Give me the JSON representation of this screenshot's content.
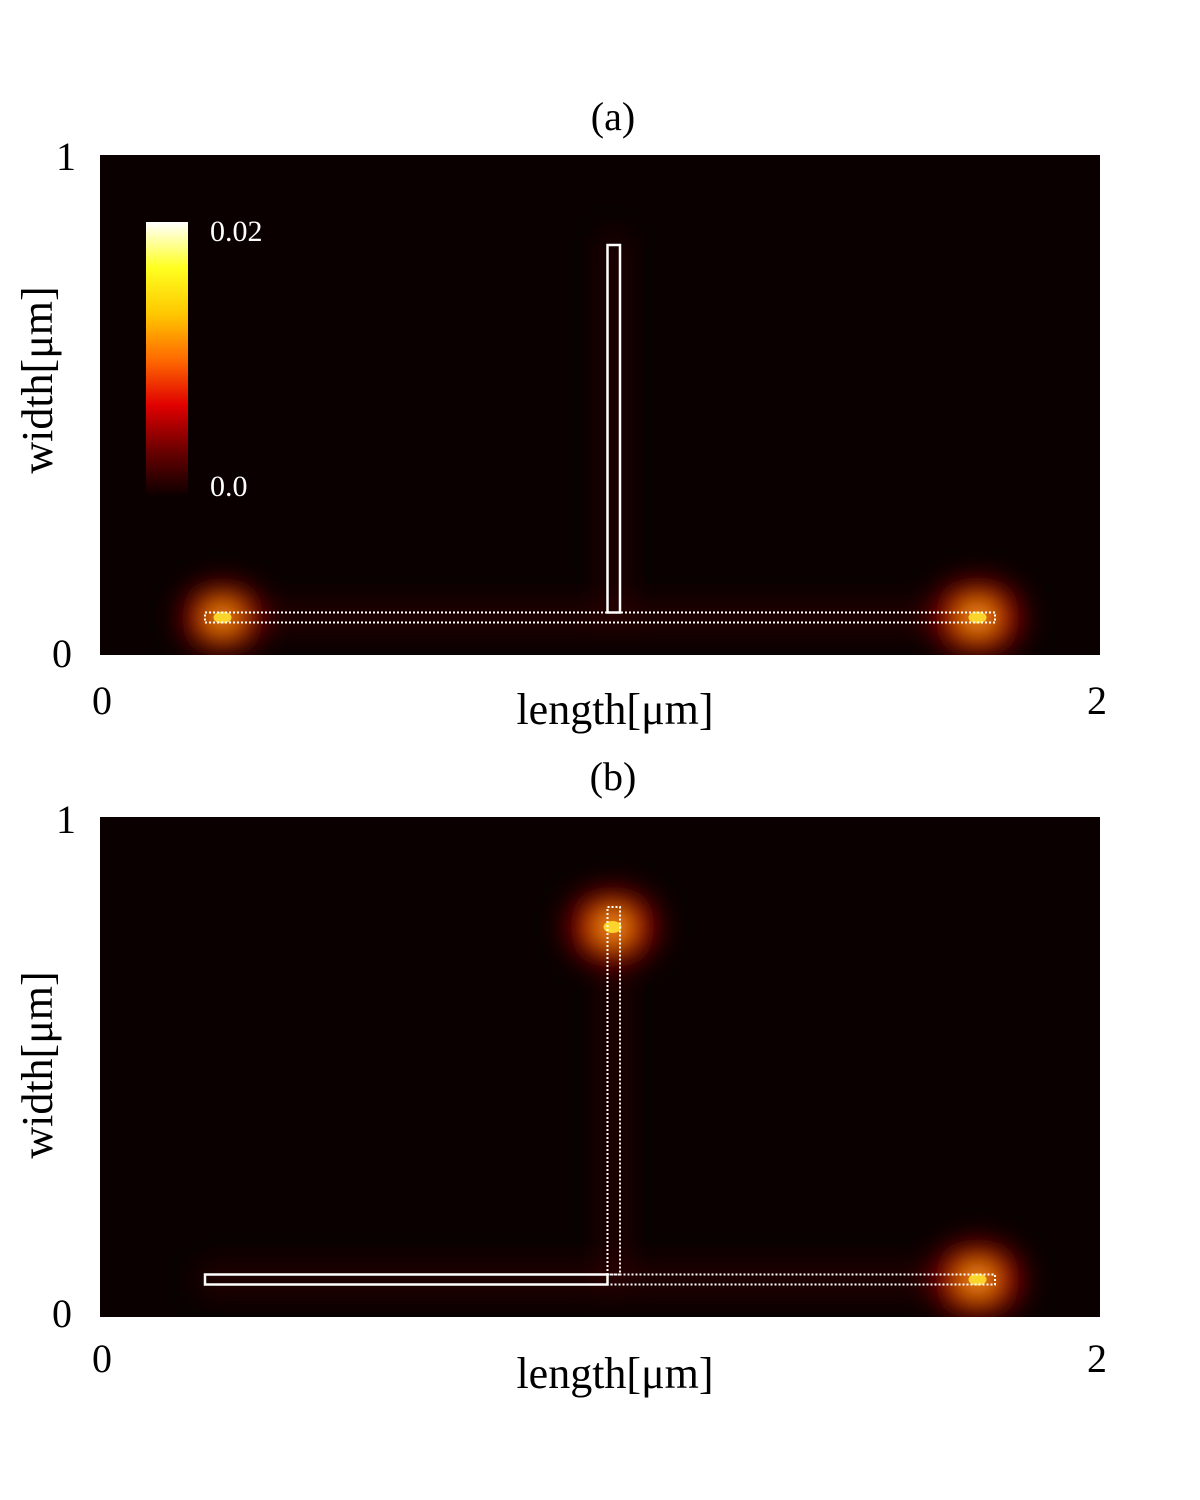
{
  "colors": {
    "background": "#0a0000",
    "wire_outline": "#ffffff"
  },
  "colormap": {
    "name": "hot",
    "stops": [
      "#0a0000",
      "#6a0000",
      "#e00000",
      "#ff6a00",
      "#ffc800",
      "#ffff20",
      "#ffffff"
    ]
  },
  "chart_data": [
    {
      "type": "heatmap",
      "title": "(a)",
      "xlabel": "length[μm]",
      "ylabel": "width[μm]",
      "xlim": [
        0,
        2
      ],
      "ylim": [
        0,
        1
      ],
      "x_ticks": [
        "0",
        "2"
      ],
      "y_ticks": [
        "0",
        "1"
      ],
      "colorbar": {
        "min": 0.0,
        "max": 0.02,
        "min_label": "0.0",
        "max_label": "0.02"
      },
      "wires": [
        {
          "x0": 0.21,
          "x1": 1.79,
          "y0": 0.065,
          "y1": 0.085,
          "style": "dotted"
        },
        {
          "x0": 1.015,
          "x1": 1.04,
          "y0": 0.085,
          "y1": 0.82,
          "style": "solid"
        }
      ],
      "peaks": [
        {
          "x": 0.245,
          "y": 0.075,
          "value": 0.018
        },
        {
          "x": 1.755,
          "y": 0.075,
          "value": 0.02
        }
      ]
    },
    {
      "type": "heatmap",
      "title": "(b)",
      "xlabel": "length[μm]",
      "ylabel": "width[μm]",
      "xlim": [
        0,
        2
      ],
      "ylim": [
        0,
        1
      ],
      "x_ticks": [
        "0",
        "2"
      ],
      "y_ticks": [
        "0",
        "1"
      ],
      "wires": [
        {
          "x0": 0.21,
          "x1": 1.015,
          "y0": 0.065,
          "y1": 0.085,
          "style": "solid"
        },
        {
          "x0": 1.015,
          "x1": 1.79,
          "y0": 0.065,
          "y1": 0.085,
          "style": "dotted"
        },
        {
          "x0": 1.015,
          "x1": 1.04,
          "y0": 0.085,
          "y1": 0.82,
          "style": "dotted"
        }
      ],
      "peaks": [
        {
          "x": 1.025,
          "y": 0.78,
          "value": 0.02
        },
        {
          "x": 1.755,
          "y": 0.075,
          "value": 0.02
        }
      ]
    }
  ]
}
